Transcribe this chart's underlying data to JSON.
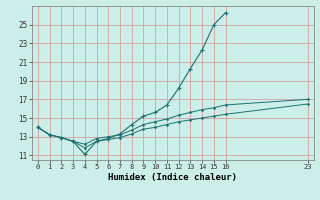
{
  "bg_color": "#cceee8",
  "grid_color": "#d4a0a0",
  "line_color": "#1a7070",
  "xlabel": "Humidex (Indice chaleur)",
  "xlim": [
    -0.5,
    23.5
  ],
  "ylim": [
    10.5,
    27.0
  ],
  "yticks": [
    11,
    13,
    15,
    17,
    19,
    21,
    23,
    25
  ],
  "xticks": [
    0,
    1,
    2,
    3,
    4,
    5,
    6,
    7,
    8,
    9,
    10,
    11,
    12,
    13,
    14,
    15,
    16,
    23
  ],
  "line1_x": [
    0,
    1,
    2,
    3,
    4,
    5,
    6,
    7,
    8,
    9,
    10,
    11,
    12,
    13,
    14,
    15,
    16
  ],
  "line1_y": [
    14.0,
    13.2,
    12.9,
    12.5,
    11.1,
    12.5,
    12.8,
    13.3,
    14.3,
    15.2,
    15.6,
    16.4,
    18.2,
    20.3,
    22.3,
    25.0,
    26.3
  ],
  "line2_x": [
    0,
    1,
    2,
    3,
    4,
    5,
    6,
    7,
    8,
    9,
    10,
    11,
    12,
    13,
    14,
    15,
    16,
    23
  ],
  "line2_y": [
    14.0,
    13.2,
    12.9,
    12.5,
    11.8,
    12.5,
    12.7,
    12.9,
    13.3,
    13.8,
    14.0,
    14.3,
    14.6,
    14.8,
    15.0,
    15.2,
    15.4,
    16.5
  ],
  "line3_x": [
    0,
    1,
    2,
    3,
    4,
    5,
    6,
    7,
    8,
    9,
    10,
    11,
    12,
    13,
    14,
    15,
    16,
    23
  ],
  "line3_y": [
    14.0,
    13.2,
    12.9,
    12.5,
    12.2,
    12.8,
    13.0,
    13.2,
    13.7,
    14.3,
    14.6,
    14.9,
    15.3,
    15.6,
    15.9,
    16.1,
    16.4,
    17.0
  ]
}
